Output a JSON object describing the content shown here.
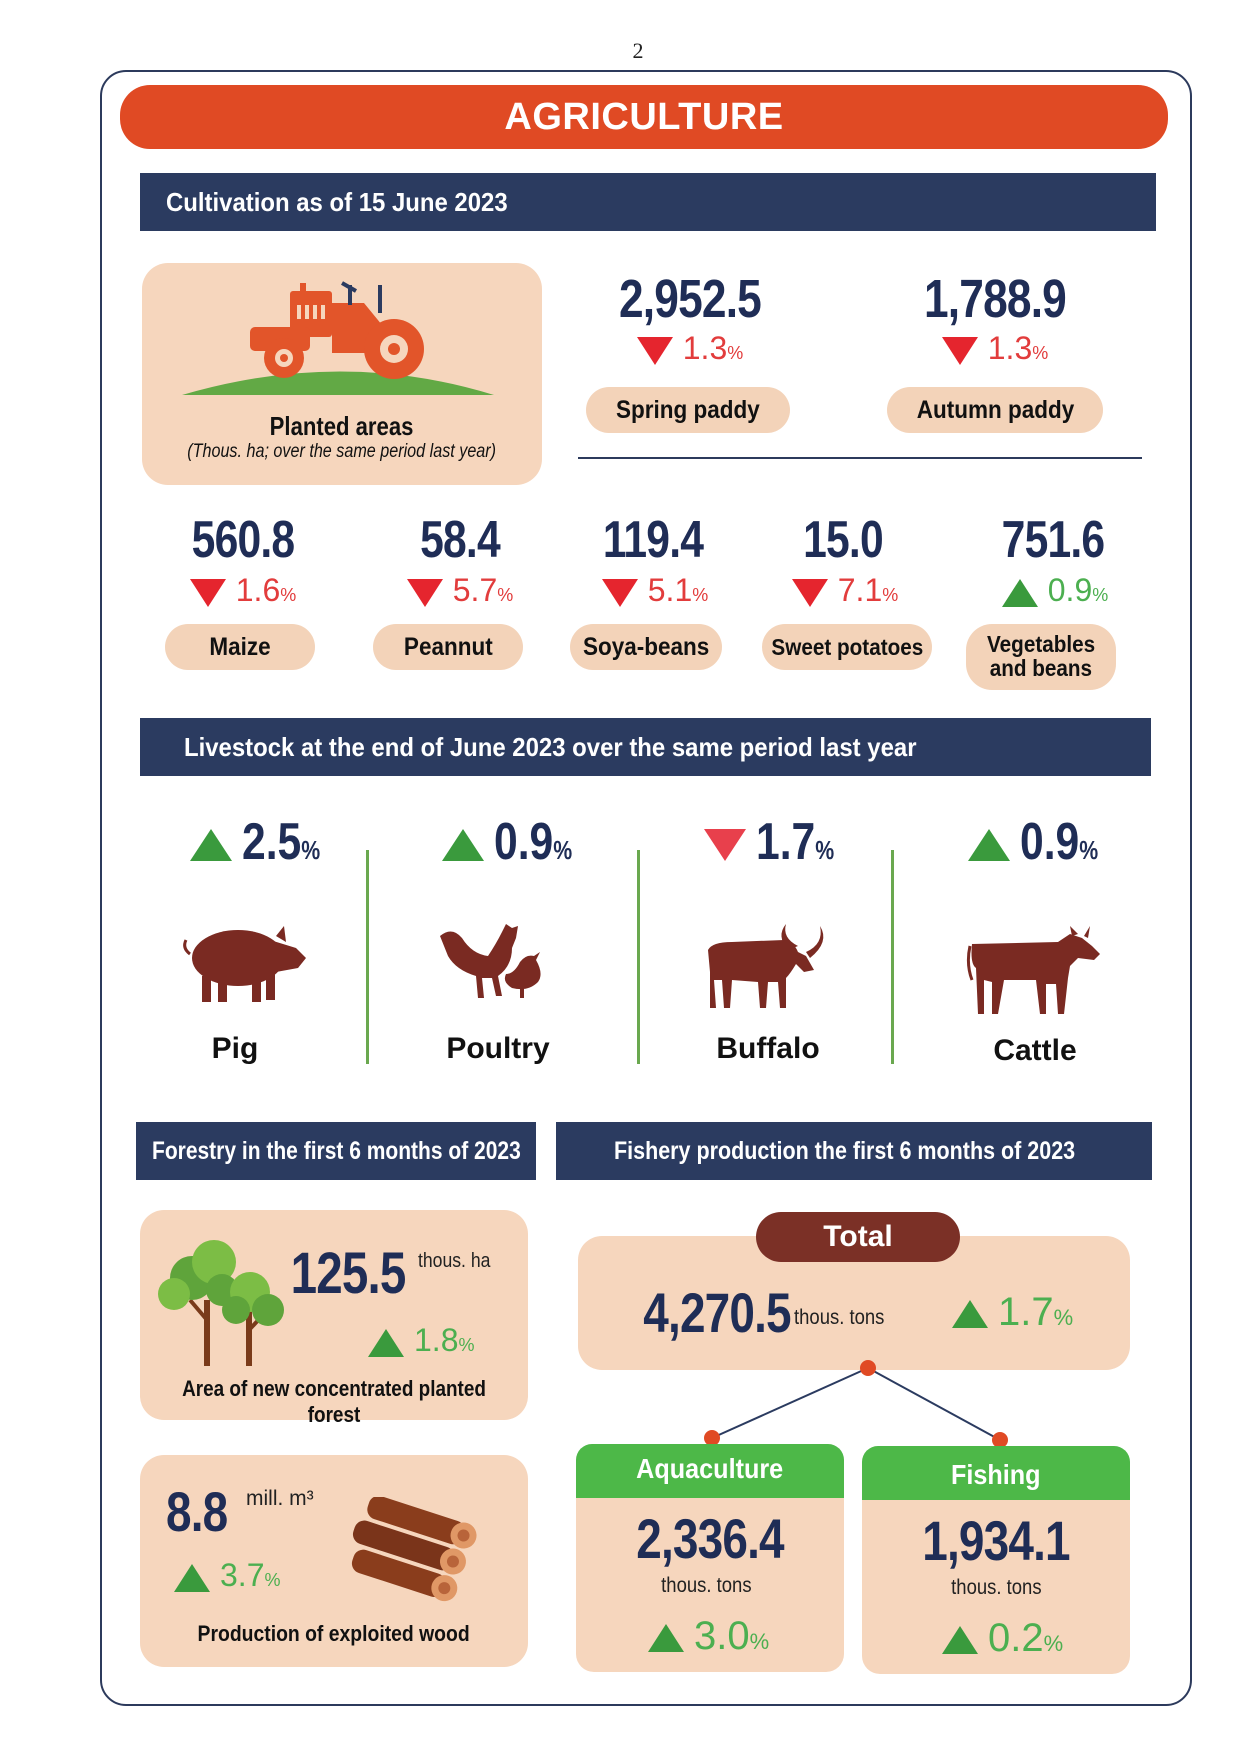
{
  "page_number": "2",
  "title": "AGRICULTURE",
  "cultivation": {
    "heading": "Cultivation as of 15 June 2023",
    "planted_label": "Planted areas",
    "planted_note": "(Thous. ha; over the same period last year)",
    "spring": {
      "value": "2,952.5",
      "pct": "1.3",
      "unit": "%",
      "label": "Spring paddy",
      "trend": "down"
    },
    "autumn": {
      "value": "1,788.9",
      "pct": "1.3",
      "unit": "%",
      "label": "Autumn paddy",
      "trend": "down"
    },
    "crops": [
      {
        "value": "560.8",
        "pct": "1.6",
        "unit": "%",
        "label": "Maize",
        "trend": "down"
      },
      {
        "value": "58.4",
        "pct": "5.7",
        "unit": "%",
        "label": "Peannut",
        "trend": "down"
      },
      {
        "value": "119.4",
        "pct": "5.1",
        "unit": "%",
        "label": "Soya-beans",
        "trend": "down"
      },
      {
        "value": "15.0",
        "pct": "7.1",
        "unit": "%",
        "label": "Sweet potatoes",
        "trend": "down"
      },
      {
        "value": "751.6",
        "pct": "0.9",
        "unit": "%",
        "label_line1": "Vegetables",
        "label_line2": "and beans",
        "trend": "up"
      }
    ]
  },
  "livestock": {
    "heading": "Livestock at the end of June 2023 over the same period last year",
    "items": [
      {
        "pct": "2.5",
        "unit": "%",
        "label": "Pig",
        "trend": "up"
      },
      {
        "pct": "0.9",
        "unit": "%",
        "label": "Poultry",
        "trend": "up"
      },
      {
        "pct": "1.7",
        "unit": "%",
        "label": "Buffalo",
        "trend": "down"
      },
      {
        "pct": "0.9",
        "unit": "%",
        "label": "Cattle",
        "trend": "up"
      }
    ]
  },
  "forestry": {
    "heading": "Forestry in the first 6 months of 2023",
    "area": {
      "value": "125.5",
      "unit": "thous. ha",
      "pct": "1.8",
      "pct_unit": "%",
      "label": "Area of new concentrated planted forest"
    },
    "wood": {
      "value": "8.8",
      "unit": "mill. m³",
      "pct": "3.7",
      "pct_unit": "%",
      "label": "Production of exploited wood"
    }
  },
  "fishery": {
    "heading": "Fishery production the first 6 months of 2023",
    "total": {
      "label": "Total",
      "value": "4,270.5",
      "unit": "thous. tons",
      "pct": "1.7",
      "pct_unit": "%"
    },
    "aquaculture": {
      "label": "Aquaculture",
      "value": "2,336.4",
      "unit": "thous. tons",
      "pct": "3.0",
      "pct_unit": "%"
    },
    "fishing": {
      "label": "Fishing",
      "value": "1,934.1",
      "unit": "thous. tons",
      "pct": "0.2",
      "pct_unit": "%"
    }
  },
  "colors": {
    "title_bar": "#e04a24",
    "section_bar": "#2b3b60",
    "card": "#f6d6bd",
    "up": "#3a9a3d",
    "down": "#e5252e",
    "number": "#1f2d56"
  }
}
